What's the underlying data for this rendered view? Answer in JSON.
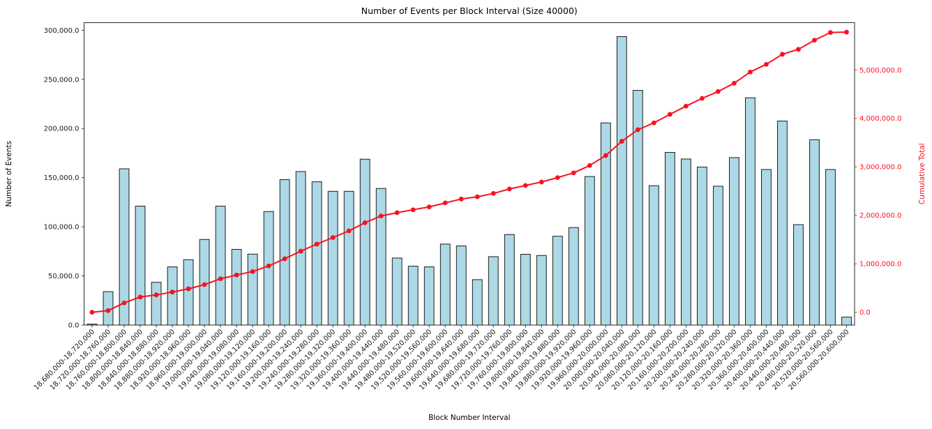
{
  "figure": {
    "title": "Number of Events per Block Interval (Size 40000)",
    "xlabel": "Block Number Interval",
    "ylabel_left": "Number of Events",
    "ylabel_right": "Cumulative Total"
  },
  "chart_data": {
    "type": "bar",
    "title": "Number of Events per Block Interval (Size 40000)",
    "xlabel": "Block Number Interval",
    "ylabel": "Number of Events",
    "ylabel_right": "Cumulative Total",
    "grid": false,
    "legend": "none",
    "categories": [
      "18,680,000-18,720,000",
      "18,720,000-18,760,000",
      "18,760,000-18,800,000",
      "18,800,000-18,840,000",
      "18,840,000-18,880,000",
      "18,880,000-18,920,000",
      "18,920,000-18,960,000",
      "18,960,000-19,000,000",
      "19,000,000-19,040,000",
      "19,040,000-19,080,000",
      "19,080,000-19,120,000",
      "19,120,000-19,160,000",
      "19,160,000-19,200,000",
      "19,200,000-19,240,000",
      "19,240,000-19,280,000",
      "19,280,000-19,320,000",
      "19,320,000-19,360,000",
      "19,360,000-19,400,000",
      "19,400,000-19,440,000",
      "19,440,000-19,480,000",
      "19,480,000-19,520,000",
      "19,520,000-19,560,000",
      "19,560,000-19,600,000",
      "19,600,000-19,640,000",
      "19,640,000-19,680,000",
      "19,680,000-19,720,000",
      "19,720,000-19,760,000",
      "19,760,000-19,800,000",
      "19,800,000-19,840,000",
      "19,840,000-19,880,000",
      "19,880,000-19,920,000",
      "19,920,000-19,960,000",
      "19,960,000-20,000,000",
      "20,000,000-20,040,000",
      "20,040,000-20,080,000",
      "20,080,000-20,120,000",
      "20,120,000-20,160,000",
      "20,160,000-20,200,000",
      "20,200,000-20,240,000",
      "20,240,000-20,280,000",
      "20,280,000-20,320,000",
      "20,320,000-20,360,000",
      "20,360,000-20,400,000",
      "20,400,000-20,440,000",
      "20,440,000-20,480,000",
      "20,480,000-20,520,000",
      "20,520,000-20,560,000",
      "20,560,000-20,600,000"
    ],
    "series": [
      {
        "name": "Number of Events",
        "render": "bar",
        "axis": "left",
        "fill_color": "#ADD8E6",
        "edge_color": "#1c1c1c",
        "values": [
          1000,
          34000,
          159000,
          121000,
          43500,
          59200,
          66500,
          87100,
          121000,
          77000,
          72200,
          115500,
          148000,
          156200,
          145800,
          136100,
          136100,
          168800,
          139000,
          68200,
          59900,
          59200,
          82400,
          80500,
          46200,
          69600,
          92100,
          72000,
          70800,
          90400,
          99200,
          151200,
          205700,
          293500,
          238800,
          141800,
          175700,
          169000,
          160800,
          141300,
          170400,
          231300,
          158300,
          207600,
          102200,
          188600,
          158300,
          8100
        ]
      },
      {
        "name": "Cumulative Total",
        "render": "line",
        "axis": "right",
        "color": "#f8121f",
        "marker": "circle",
        "values": [
          1000,
          35000,
          194000,
          315000,
          358500,
          417700,
          484200,
          571300,
          692300,
          769300,
          841500,
          957000,
          1105000,
          1261200,
          1407000,
          1543100,
          1679200,
          1848000,
          1987000,
          2055200,
          2115100,
          2174300,
          2256700,
          2337200,
          2383400,
          2453000,
          2545100,
          2617100,
          2687900,
          2778300,
          2877500,
          3028700,
          3234400,
          3527900,
          3766700,
          3908500,
          4084200,
          4253200,
          4414000,
          4555300,
          4725700,
          4957000,
          5115300,
          5322900,
          5425100,
          5613700,
          5772000,
          5780100
        ]
      }
    ],
    "left_axis": {
      "lim": [
        0,
        307700
      ],
      "tick_values": [
        0,
        50000,
        100000,
        150000,
        200000,
        250000,
        300000
      ],
      "tick_labels": [
        "0.0",
        "50,000.0",
        "100,000.0",
        "150,000.0",
        "200,000.0",
        "250,000.0",
        "300,000.0"
      ],
      "color": "#1a1a1a"
    },
    "right_axis": {
      "lim": [
        -263000,
        5975000
      ],
      "tick_values": [
        0,
        1000000,
        2000000,
        3000000,
        4000000,
        5000000
      ],
      "tick_labels": [
        "0.0",
        "1,000,000.0",
        "2,000,000.0",
        "3,000,000.0",
        "4,000,000.0",
        "5,000,000.0"
      ],
      "color": "#f8121f"
    }
  }
}
